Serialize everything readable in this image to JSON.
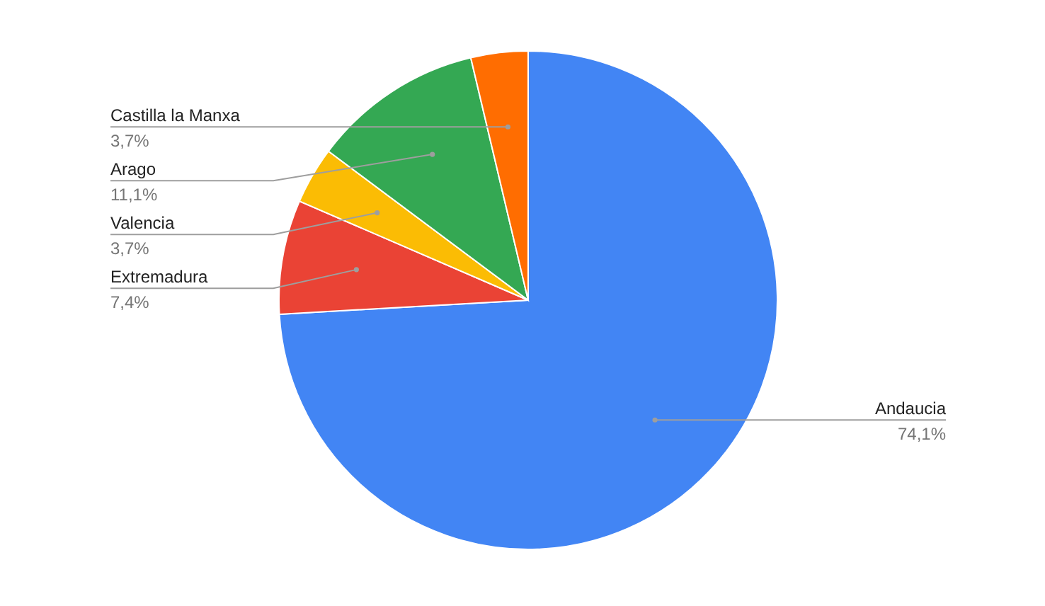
{
  "chart_data": {
    "type": "pie",
    "categories": [
      "Andaucia",
      "Extremadura",
      "Valencia",
      "Arago",
      "Castilla la Manxa"
    ],
    "values": [
      74.1,
      7.4,
      3.7,
      11.1,
      3.7
    ],
    "colors": [
      "#4285f4",
      "#ea4335",
      "#fbbc04",
      "#34a853",
      "#ff6d01"
    ],
    "value_labels": [
      "74,1%",
      "7,4%",
      "3,7%",
      "11,1%",
      "3,7%"
    ],
    "legend": false
  }
}
